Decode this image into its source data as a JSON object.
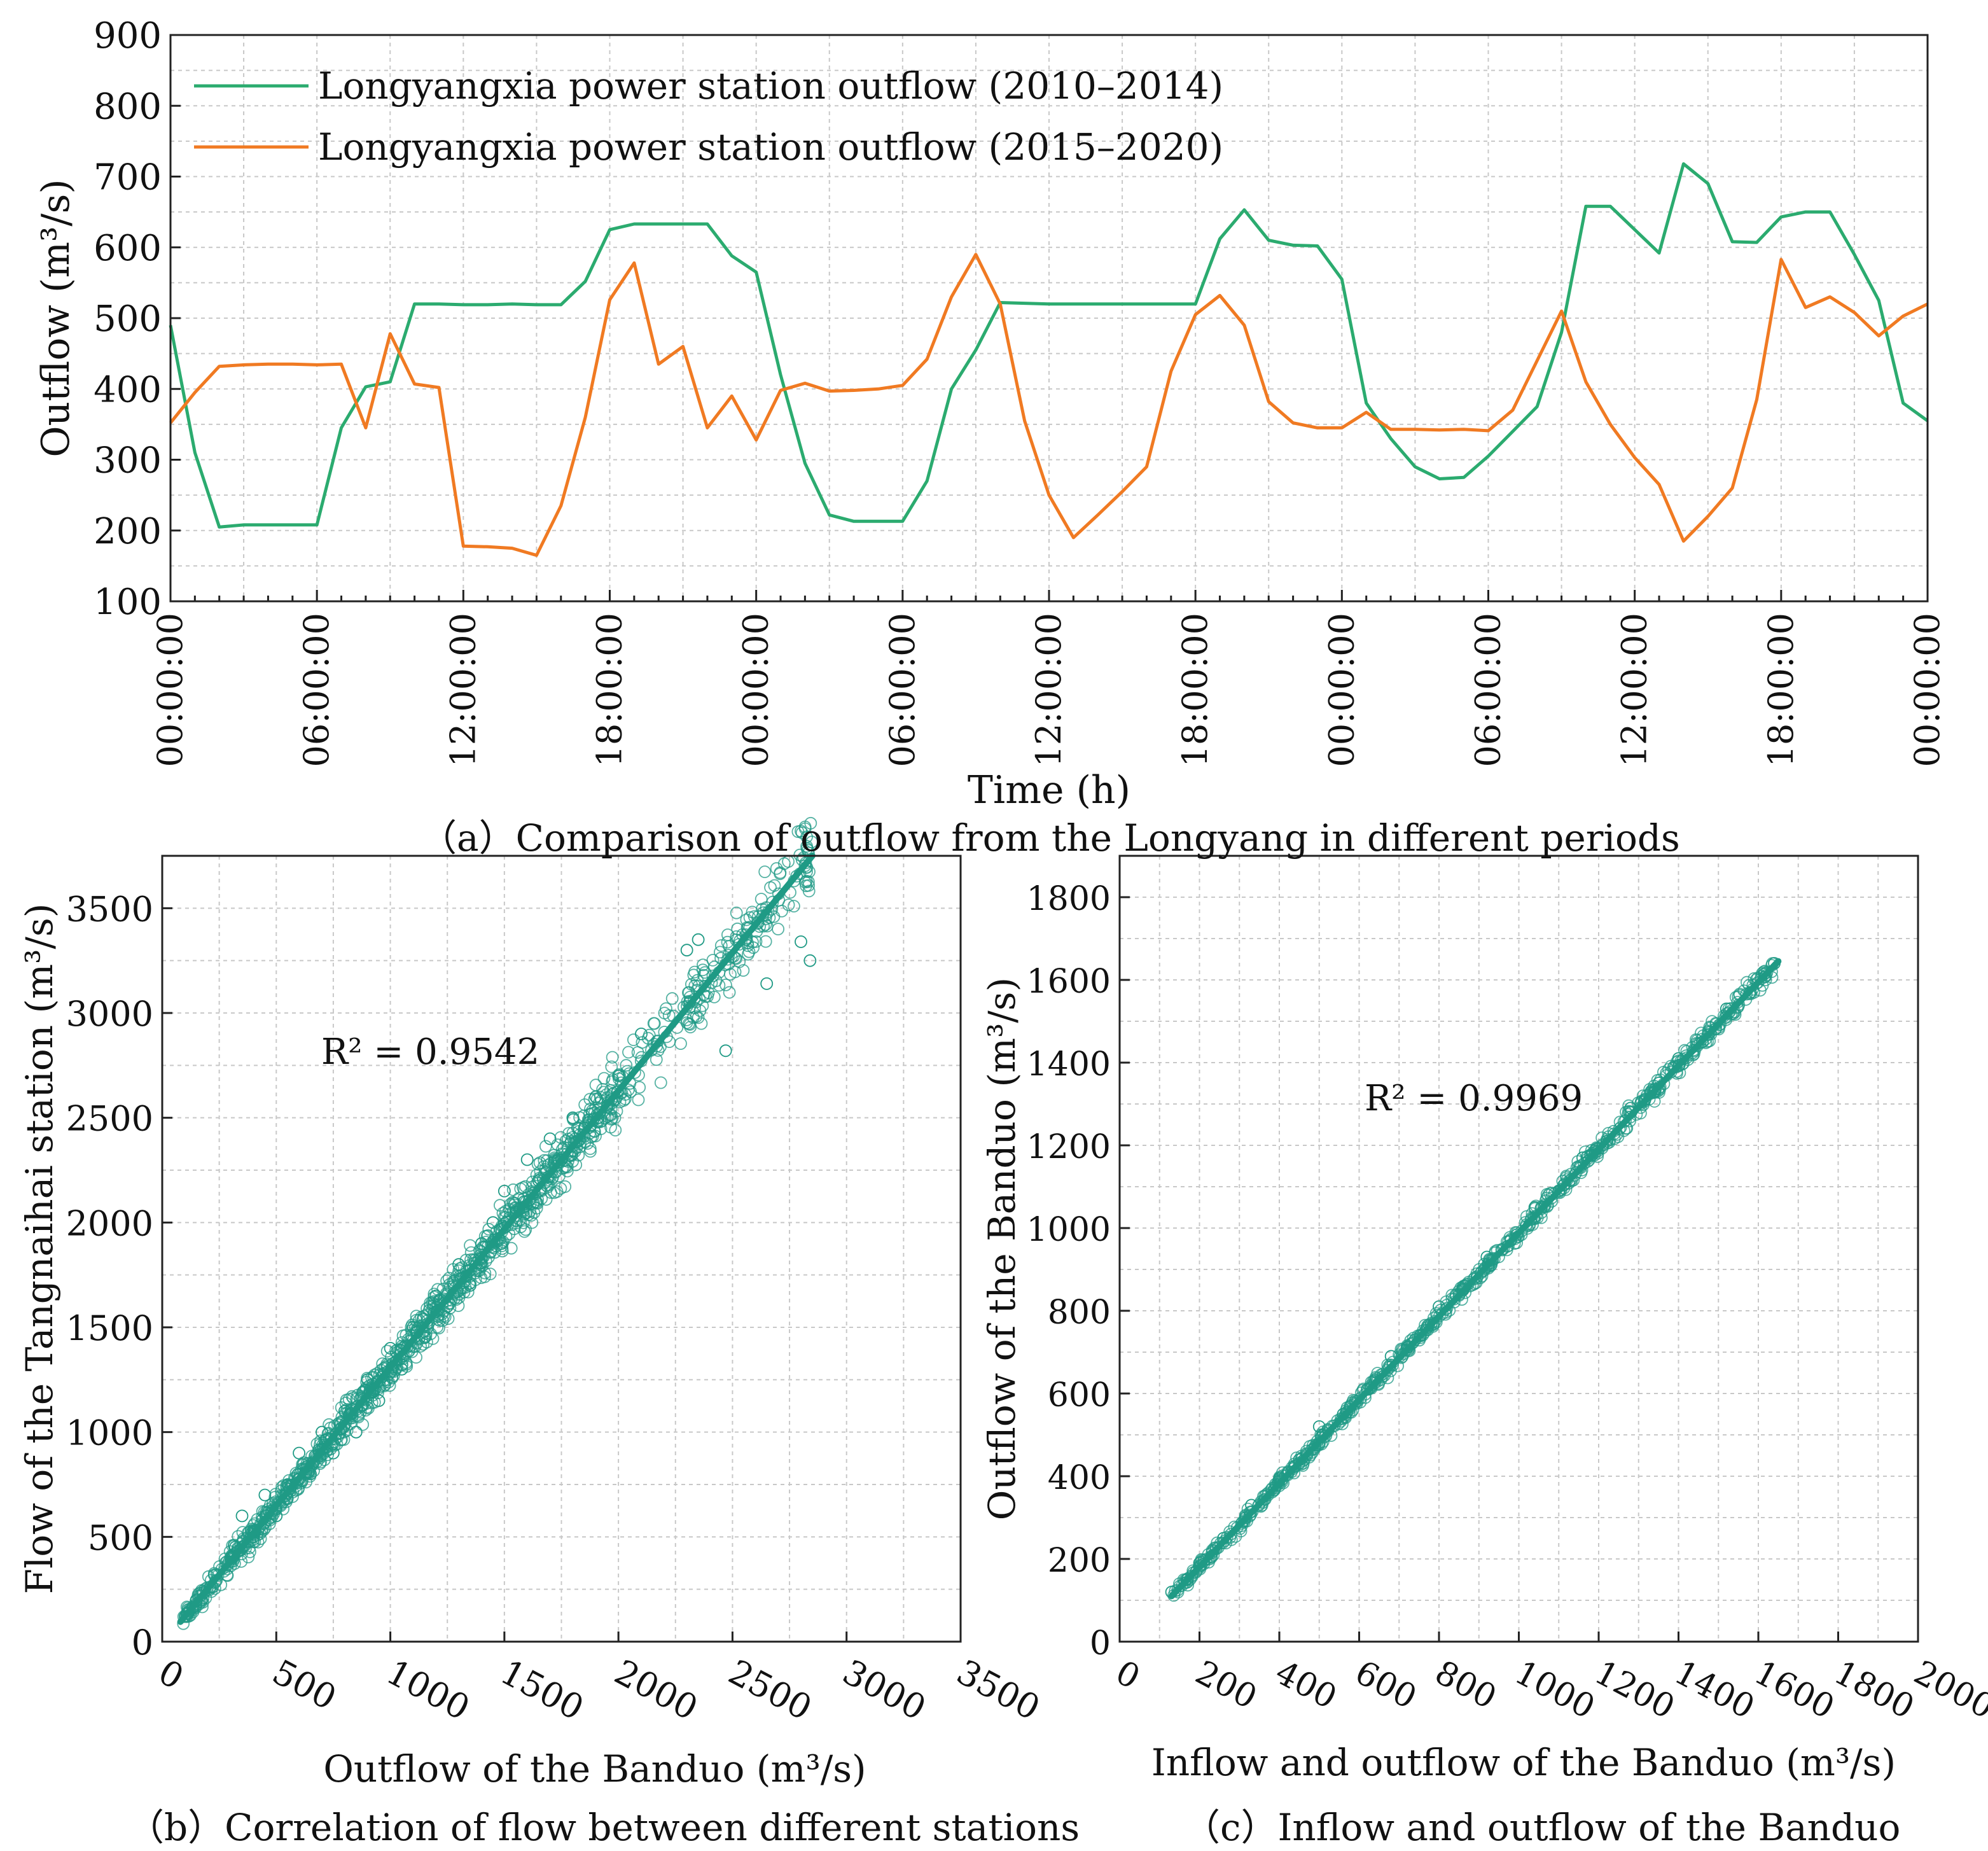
{
  "colors": {
    "green": "#2bab6f",
    "orange": "#f07a22",
    "teal": "#1f9a85",
    "grid": "#c8c8c8"
  },
  "captions": {
    "a": "（a）Comparison of outflow from the  Longyang  in different periods",
    "b": "（b）Correlation of flow between different stations",
    "c": "（c）Inflow and outflow of the Banduo"
  },
  "chart_data": [
    {
      "id": "a",
      "type": "line",
      "xlabel": "Time (h)",
      "ylabel": "Outflow (m³/s)",
      "ylim": [
        100,
        900
      ],
      "yticks": [
        100,
        200,
        300,
        400,
        500,
        600,
        700,
        800,
        900
      ],
      "xlim": [
        0,
        72
      ],
      "xticks": [
        0,
        6,
        12,
        18,
        24,
        30,
        36,
        42,
        48,
        54,
        60,
        66,
        72
      ],
      "xtick_labels": [
        "00:00:00",
        "06:00:00",
        "12:00:00",
        "18:00:00",
        "00:00:00",
        "06:00:00",
        "12:00:00",
        "18:00:00",
        "00:00:00",
        "06:00:00",
        "12:00:00",
        "18:00:00",
        "00:00:00"
      ],
      "grid": true,
      "legend": "top-left",
      "series": [
        {
          "name": "Longyangxia power station outflow (2010–2014)",
          "color_key": "green",
          "x": [
            0,
            1,
            2,
            3,
            4,
            5,
            6,
            7,
            8,
            9,
            10,
            11,
            12,
            13,
            14,
            15,
            16,
            17,
            18,
            19,
            20,
            21,
            22,
            23,
            24,
            25,
            26,
            27,
            28,
            29,
            30,
            31,
            32,
            33,
            34,
            35,
            36,
            37,
            38,
            39,
            40,
            41,
            42,
            43,
            44,
            45,
            46,
            47,
            48,
            49,
            50,
            51,
            52,
            53,
            54,
            55,
            56,
            57,
            58,
            59,
            60,
            61,
            62,
            63,
            64,
            65,
            66,
            67,
            68,
            69,
            70,
            71,
            72
          ],
          "values": [
            490,
            310,
            205,
            208,
            208,
            208,
            208,
            345,
            403,
            410,
            520,
            520,
            519,
            519,
            520,
            519,
            519,
            552,
            625,
            633,
            633,
            633,
            633,
            588,
            565,
            420,
            295,
            222,
            213,
            213,
            213,
            270,
            400,
            455,
            522,
            521,
            520,
            520,
            520,
            520,
            520,
            520,
            520,
            612,
            653,
            610,
            603,
            602,
            555,
            380,
            330,
            290,
            273,
            275,
            305,
            340,
            375,
            480,
            658,
            658,
            625,
            592,
            718,
            690,
            608,
            607,
            643,
            650,
            650,
            590,
            525,
            380,
            355
          ]
        },
        {
          "name": "Longyangxia power station outflow (2015–2020)",
          "color_key": "orange",
          "x": [
            0,
            1,
            2,
            3,
            4,
            5,
            6,
            7,
            8,
            9,
            10,
            11,
            12,
            13,
            14,
            15,
            16,
            17,
            18,
            19,
            20,
            21,
            22,
            23,
            24,
            25,
            26,
            27,
            28,
            29,
            30,
            31,
            32,
            33,
            34,
            35,
            36,
            37,
            38,
            39,
            40,
            41,
            42,
            43,
            44,
            45,
            46,
            47,
            48,
            49,
            50,
            51,
            52,
            53,
            54,
            55,
            56,
            57,
            58,
            59,
            60,
            61,
            62,
            63,
            64,
            65,
            66,
            67,
            68,
            69,
            70,
            71,
            72
          ],
          "values": [
            352,
            395,
            432,
            434,
            435,
            435,
            434,
            435,
            345,
            478,
            407,
            402,
            178,
            177,
            175,
            165,
            235,
            360,
            526,
            578,
            435,
            460,
            345,
            390,
            328,
            398,
            408,
            397,
            398,
            400,
            405,
            442,
            530,
            590,
            520,
            355,
            250,
            190,
            222,
            255,
            290,
            425,
            505,
            532,
            490,
            382,
            352,
            345,
            345,
            367,
            343,
            343,
            342,
            343,
            341,
            370,
            440,
            510,
            410,
            350,
            303,
            265,
            185,
            220,
            260,
            385,
            583,
            515,
            530,
            508,
            475,
            503,
            520
          ]
        }
      ]
    },
    {
      "id": "b",
      "type": "scatter",
      "xlabel": "Outflow of the Banduo (m³/s)",
      "ylabel": "Flow of the Tangnaihai station (m³/s)",
      "xlim": [
        0,
        3500
      ],
      "ylim": [
        0,
        3750
      ],
      "xticks": [
        0,
        500,
        1000,
        1500,
        2000,
        2500,
        3000,
        3500
      ],
      "yticks": [
        0,
        500,
        1000,
        1500,
        2000,
        2500,
        3000,
        3500
      ],
      "grid": true,
      "annotation": "R² = 0.9542",
      "fit_line": {
        "x": [
          80,
          2850
        ],
        "y": [
          95,
          3750
        ]
      },
      "points": [
        [
          100,
          120
        ],
        [
          150,
          200
        ],
        [
          220,
          260
        ],
        [
          300,
          400
        ],
        [
          350,
          600
        ],
        [
          400,
          500
        ],
        [
          450,
          700
        ],
        [
          500,
          600
        ],
        [
          550,
          750
        ],
        [
          600,
          900
        ],
        [
          650,
          800
        ],
        [
          700,
          1000
        ],
        [
          750,
          900
        ],
        [
          800,
          1100
        ],
        [
          850,
          1000
        ],
        [
          900,
          1250
        ],
        [
          950,
          1150
        ],
        [
          1000,
          1400
        ],
        [
          1050,
          1300
        ],
        [
          1100,
          1500
        ],
        [
          1150,
          1450
        ],
        [
          1200,
          1650
        ],
        [
          1250,
          1600
        ],
        [
          1300,
          1800
        ],
        [
          1350,
          1700
        ],
        [
          1400,
          1900
        ],
        [
          1450,
          2000
        ],
        [
          1500,
          2150
        ],
        [
          1550,
          2050
        ],
        [
          1600,
          2300
        ],
        [
          1650,
          2200
        ],
        [
          1700,
          2400
        ],
        [
          1750,
          2300
        ],
        [
          1800,
          2500
        ],
        [
          1850,
          2450
        ],
        [
          1900,
          2600
        ],
        [
          1950,
          2550
        ],
        [
          2000,
          2700
        ],
        [
          2100,
          2900
        ],
        [
          2300,
          3300
        ],
        [
          2350,
          3350
        ],
        [
          2470,
          2820
        ],
        [
          2560,
          3350
        ],
        [
          2650,
          3140
        ],
        [
          2800,
          3340
        ],
        [
          2840,
          3250
        ]
      ]
    },
    {
      "id": "c",
      "type": "scatter",
      "xlabel": "Inflow and outflow of the Banduo (m³/s)",
      "ylabel": "Outflow of the Banduo (m³/s)",
      "xlim": [
        0,
        2000
      ],
      "ylim": [
        0,
        1900
      ],
      "xticks": [
        0,
        200,
        400,
        600,
        800,
        1000,
        1200,
        1400,
        1600,
        1800,
        2000
      ],
      "yticks": [
        0,
        200,
        400,
        600,
        800,
        1000,
        1200,
        1400,
        1600,
        1800
      ],
      "grid": true,
      "annotation": "R² = 0.9969",
      "fit_line": {
        "x": [
          130,
          1650
        ],
        "y": [
          110,
          1645
        ]
      },
      "points": [
        [
          130,
          120
        ],
        [
          200,
          190
        ],
        [
          260,
          250
        ],
        [
          330,
          330
        ],
        [
          400,
          395
        ],
        [
          450,
          440
        ],
        [
          500,
          520
        ],
        [
          560,
          550
        ],
        [
          620,
          610
        ],
        [
          680,
          690
        ],
        [
          740,
          730
        ],
        [
          800,
          810
        ],
        [
          860,
          850
        ],
        [
          920,
          930
        ],
        [
          980,
          970
        ],
        [
          1040,
          1050
        ],
        [
          1100,
          1090
        ],
        [
          1160,
          1170
        ],
        [
          1220,
          1210
        ],
        [
          1280,
          1290
        ],
        [
          1340,
          1330
        ],
        [
          1400,
          1410
        ],
        [
          1460,
          1450
        ],
        [
          1520,
          1530
        ],
        [
          1580,
          1570
        ],
        [
          1640,
          1640
        ]
      ]
    }
  ]
}
